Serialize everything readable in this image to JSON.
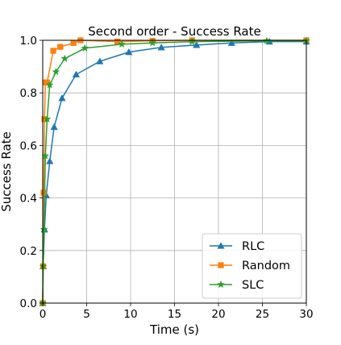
{
  "chart_data": {
    "type": "line",
    "title": "Second order - Success Rate",
    "xlabel": "Time (s)",
    "ylabel": "Success Rate",
    "xlim": [
      0,
      30
    ],
    "ylim": [
      0,
      1.0
    ],
    "xticks": [
      0,
      5,
      10,
      15,
      20,
      25,
      30
    ],
    "yticks": [
      0.0,
      0.2,
      0.4,
      0.6,
      0.8,
      1.0
    ],
    "xtick_labels": [
      "0",
      "5",
      "10",
      "15",
      "20",
      "25",
      "30"
    ],
    "ytick_labels": [
      "0.0",
      "0.2",
      "0.4",
      "0.6",
      "0.8",
      "1.0"
    ],
    "grid": true,
    "legend_position": "lower-right",
    "series": [
      {
        "name": "RLC",
        "color": "#1f77b4",
        "marker": "triangle",
        "x": [
          0.0,
          0.05,
          0.2,
          0.4,
          0.8,
          1.3,
          2.2,
          3.8,
          6.5,
          9.8,
          13.5,
          17.5,
          21.5,
          25.8,
          30.0
        ],
        "y": [
          0.0,
          0.14,
          0.28,
          0.41,
          0.54,
          0.67,
          0.78,
          0.87,
          0.92,
          0.955,
          0.973,
          0.982,
          0.99,
          0.995,
          0.995
        ]
      },
      {
        "name": "Random",
        "color": "#ff7f0e",
        "marker": "square",
        "x": [
          0.0,
          0.05,
          0.1,
          0.2,
          0.3,
          0.5,
          1.2,
          2.0,
          3.5,
          4.3,
          8.5,
          12.5,
          17.0,
          30.0
        ],
        "y": [
          0.0,
          0.14,
          0.42,
          0.7,
          0.84,
          0.84,
          0.96,
          0.975,
          0.99,
          1.0,
          0.995,
          0.998,
          1.0,
          1.0
        ]
      },
      {
        "name": "SLC",
        "color": "#2ca02c",
        "marker": "star",
        "x": [
          0.0,
          0.05,
          0.15,
          0.3,
          0.5,
          0.8,
          1.5,
          2.5,
          4.8,
          9.0,
          12.5,
          17.0,
          25.5,
          30.0
        ],
        "y": [
          0.0,
          0.14,
          0.28,
          0.56,
          0.7,
          0.83,
          0.88,
          0.93,
          0.97,
          0.985,
          0.99,
          0.995,
          0.998,
          0.998
        ]
      }
    ]
  }
}
